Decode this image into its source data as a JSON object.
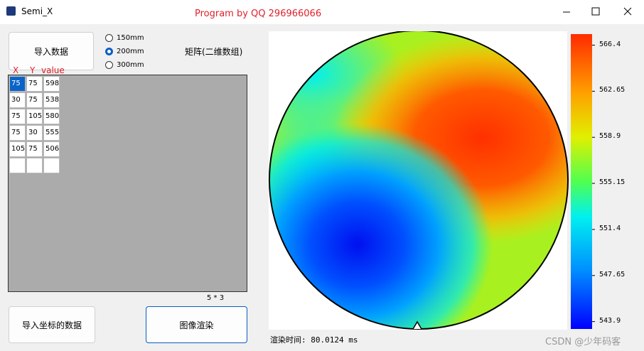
{
  "window": {
    "title": "Semi_X",
    "banner": "Program by QQ 296966066"
  },
  "buttons": {
    "import_data": "导入数据",
    "import_coords": "导入坐标的数据",
    "render": "图像渲染"
  },
  "radios": {
    "options": [
      "150mm",
      "200mm",
      "300mm"
    ],
    "selected": 1
  },
  "matrix_label": "矩阵(二维数组)",
  "table": {
    "headers": [
      "X",
      "Y",
      "value"
    ],
    "rows": [
      [
        "75",
        "75",
        "598"
      ],
      [
        "30",
        "75",
        "538"
      ],
      [
        "75",
        "105",
        "580"
      ],
      [
        "75",
        "30",
        "555"
      ],
      [
        "105",
        "75",
        "506"
      ]
    ],
    "size": "5 * 3"
  },
  "colorbar": {
    "lim": [
      543.3,
      567.3
    ],
    "ticks": [
      566.4,
      562.65,
      558.9,
      555.15,
      551.4,
      547.65,
      543.9
    ]
  },
  "status": "渲染时间: 80.0124 ms",
  "watermark": "CSDN @少年码客"
}
